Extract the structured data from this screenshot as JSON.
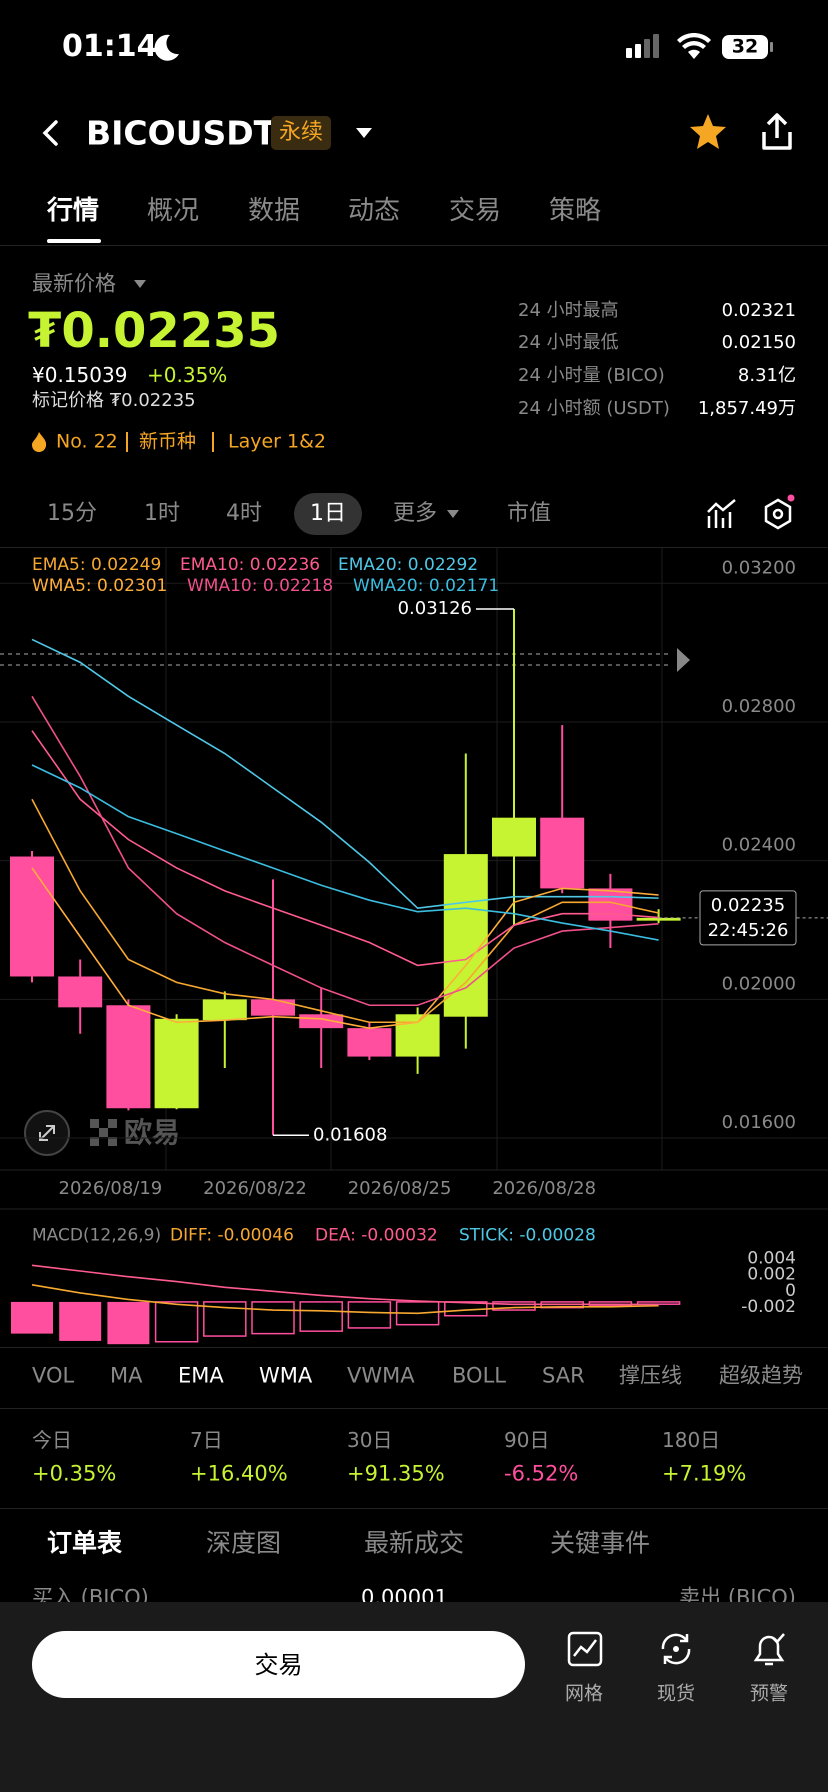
{
  "status_bar": {
    "time": "01:14",
    "battery": "32"
  },
  "header": {
    "symbol": "BICOUSDT",
    "badge": "永续"
  },
  "tabs": [
    "行情",
    "概况",
    "数据",
    "动态",
    "交易",
    "策略"
  ],
  "price": {
    "label": "最新价格",
    "last": "₮0.02235",
    "cny": "¥0.15039",
    "change": "+0.35%",
    "mark": "标记价格 ₮0.02235",
    "tags": [
      "No. 22",
      "新币种",
      "Layer 1&2"
    ]
  },
  "stats": [
    {
      "label": "24 小时最高",
      "value": "0.02321"
    },
    {
      "label": "24 小时最低",
      "value": "0.02150"
    },
    {
      "label": "24 小时量 (BICO)",
      "value": "8.31亿"
    },
    {
      "label": "24 小时额 (USDT)",
      "value": "1,857.49万"
    }
  ],
  "intervals": [
    "15分",
    "1时",
    "4时",
    "1日",
    "更多",
    "市值"
  ],
  "watermark": "欧易",
  "chart_data": [
    {
      "type": "candlestick",
      "categories": [
        null,
        null,
        "2026/08/19",
        null,
        null,
        "2026/08/22",
        null,
        null,
        "2026/08/25",
        null,
        null,
        "2026/08/28",
        null,
        null
      ],
      "open": [
        0.02412,
        0.02066,
        0.01983,
        0.01686,
        0.0194,
        0.02,
        0.01957,
        0.01917,
        0.01835,
        0.0195,
        0.02412,
        0.02524,
        0.0232,
        0.02227
      ],
      "high": [
        0.02428,
        0.02115,
        0.02,
        0.01957,
        0.02023,
        0.02346,
        0.02033,
        0.01934,
        0.01977,
        0.02709,
        0.03126,
        0.02791,
        0.02362,
        0.0226
      ],
      "low": [
        0.02049,
        0.01901,
        0.0168,
        0.01683,
        0.01802,
        0.01608,
        0.01802,
        0.01825,
        0.01785,
        0.01858,
        0.02214,
        0.02306,
        0.02148,
        0.0222
      ],
      "close": [
        0.02066,
        0.01977,
        0.01686,
        0.01944,
        0.02,
        0.01953,
        0.01917,
        0.01835,
        0.01957,
        0.02419,
        0.02524,
        0.0232,
        0.02227,
        0.02235
      ],
      "up_color": "#c6f432",
      "down_color": "#ff4f9e",
      "series": [
        {
          "name": "EMA5: 0.02249",
          "color": "#f7a830",
          "values": [
            0.02577,
            0.02313,
            0.02115,
            0.02049,
            0.02016,
            0.02,
            0.01967,
            0.01934,
            0.01934,
            0.02049,
            0.02214,
            0.0228,
            0.0228,
            0.02249
          ]
        },
        {
          "name": "EMA10: 0.02236",
          "color": "#ff5b8f",
          "values": [
            0.02775,
            0.02577,
            0.02461,
            0.02379,
            0.02313,
            0.02263,
            0.02214,
            0.02164,
            0.02098,
            0.02115,
            0.02214,
            0.02247,
            0.02247,
            0.02236
          ]
        },
        {
          "name": "EMA20: 0.02292",
          "color": "#4fc8e8",
          "values": [
            0.03038,
            0.02972,
            0.02874,
            0.02791,
            0.02709,
            0.0261,
            0.02511,
            0.02395,
            0.02263,
            0.0228,
            0.02296,
            0.02296,
            0.02296,
            0.02292
          ]
        },
        {
          "name": "WMA5: 0.02301",
          "color": "#ffad3b",
          "values": [
            0.02379,
            0.02181,
            0.01983,
            0.01934,
            0.0194,
            0.0195,
            0.01944,
            0.01917,
            0.01934,
            0.02098,
            0.0228,
            0.0232,
            0.02313,
            0.02301
          ]
        },
        {
          "name": "WMA10: 0.02218",
          "color": "#f0508a",
          "values": [
            0.02874,
            0.02643,
            0.02379,
            0.02247,
            0.02164,
            0.02098,
            0.02033,
            0.01983,
            0.01983,
            0.02033,
            0.02148,
            0.02197,
            0.02207,
            0.02218
          ]
        },
        {
          "name": "WMA20: 0.02171",
          "color": "#3bbde0",
          "values": [
            0.02676,
            0.0261,
            0.02527,
            0.02478,
            0.02428,
            0.02379,
            0.02329,
            0.02286,
            0.02253,
            0.02263,
            0.02247,
            0.0222,
            0.02197,
            0.02171
          ]
        }
      ],
      "ylim": [
        0.01505,
        0.03296
      ],
      "yticks": [
        {
          "value": 0.032,
          "label": "0.03200"
        },
        {
          "value": 0.028,
          "label": "0.02800"
        },
        {
          "value": 0.024,
          "label": "0.02400"
        },
        {
          "value": 0.02,
          "label": "0.02000"
        },
        {
          "value": 0.016,
          "label": "0.01600"
        }
      ],
      "grid": true,
      "annotations": {
        "high": "0.03126",
        "low": "0.01608"
      },
      "last_price": "0.02235",
      "countdown": "22:45:26"
    },
    {
      "type": "macd",
      "title": "MACD(12,26,9)",
      "series": [
        {
          "name": "DIFF: -0.00046",
          "color": "#f7a830",
          "values": [
            0.0021,
            0.0011,
            0.0003,
            -0.0003,
            -0.0007,
            -0.001,
            -0.0011,
            -0.0013,
            -0.0014,
            -0.001,
            -0.0007,
            -0.0006,
            -0.0006,
            -0.00046
          ]
        },
        {
          "name": "DEA: -0.00032",
          "color": "#ff5b8f",
          "values": [
            0.0045,
            0.0038,
            0.0031,
            0.0025,
            0.0018,
            0.0013,
            0.0008,
            0.0004,
            0.0001,
            -0.0001,
            -0.0003,
            -0.0003,
            -0.0003,
            -0.00032
          ]
        }
      ],
      "histogram": {
        "name": "STICK: -0.00028",
        "color": "#4fc8e8",
        "values": [
          -0.0039,
          -0.0048,
          -0.0052,
          -0.0049,
          -0.0042,
          -0.0039,
          -0.0036,
          -0.0032,
          -0.0028,
          -0.0017,
          -0.001,
          -0.0007,
          -0.0004,
          -0.00028
        ]
      },
      "up_color": "#c6f432",
      "down_color": "#ff4f9e",
      "ylim": [
        -0.0053,
        0.007
      ],
      "yticks": [
        0.004,
        0.002,
        0,
        -0.002
      ]
    }
  ],
  "indicator_tabs": [
    "VOL",
    "MA",
    "EMA",
    "WMA",
    "VWMA",
    "BOLL",
    "SAR",
    "撑压线",
    "超级趋势"
  ],
  "returns": [
    {
      "period": "今日",
      "change": "+0.35%"
    },
    {
      "period": "7日",
      "change": "+16.40%"
    },
    {
      "period": "30日",
      "change": "+91.35%"
    },
    {
      "period": "90日",
      "change": "-6.52%"
    },
    {
      "period": "180日",
      "change": "+7.19%"
    }
  ],
  "order_tabs": [
    "订单表",
    "深度图",
    "最新成交",
    "关键事件"
  ],
  "order_header": {
    "buy": "买入 (BICO)",
    "step": "0.00001",
    "sell": "卖出 (BICO)"
  },
  "bottom": {
    "trade": "交易",
    "actions": [
      "网格",
      "现货",
      "预警"
    ]
  }
}
